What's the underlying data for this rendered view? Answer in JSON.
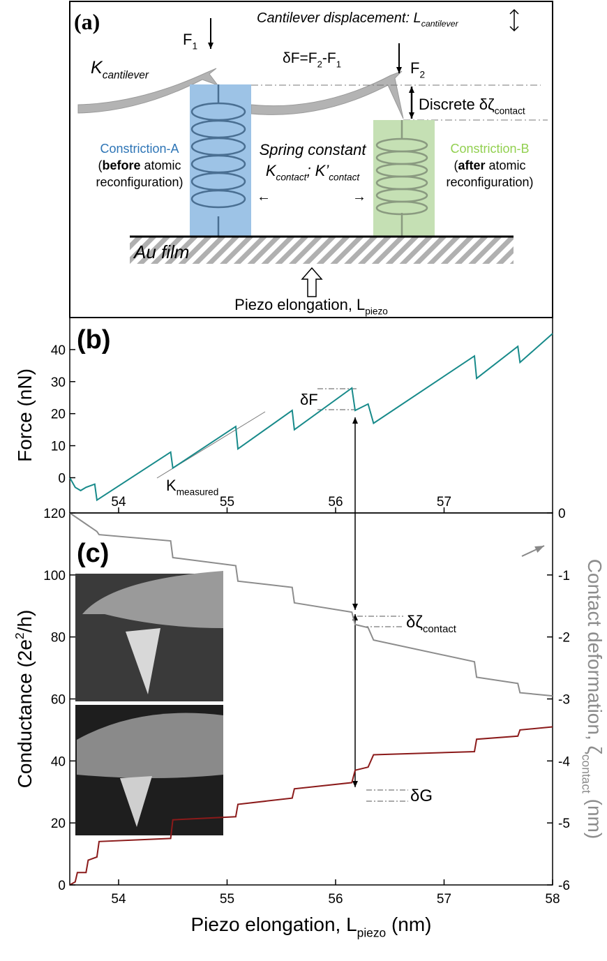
{
  "panel_a": {
    "label": "(a)",
    "displacement": [
      "Cantilever displacement: L",
      "cantilever"
    ],
    "f1": [
      "F",
      "1"
    ],
    "k_cantilever": [
      "K",
      "cantilever"
    ],
    "delta_f": [
      "δF=F",
      "2",
      "-F",
      "1"
    ],
    "f2": [
      "F",
      "2"
    ],
    "discrete": [
      "Discrete δζ",
      "contact"
    ],
    "constriction_a": {
      "title": "Constriction-A",
      "line1": [
        "(",
        "before",
        " atomic"
      ],
      "line2": "reconfiguration)"
    },
    "spring": {
      "title": "Spring constant",
      "line2": [
        "K",
        "contact",
        "; K’",
        "contact"
      ]
    },
    "constriction_b": {
      "title": "Constriction-B",
      "line1": [
        "(",
        "after",
        " atomic"
      ],
      "line2": "reconfiguration)"
    },
    "substrate": "Au film",
    "piezo": [
      "Piezo elongation, L",
      "piezo"
    ]
  },
  "chart_data": [
    {
      "type": "line",
      "label": "(b)",
      "ylabel": "Force (nN)",
      "annotations": {
        "delta_f": "δF",
        "k_measured": [
          "K",
          "measured"
        ]
      },
      "xlim": [
        53.55,
        58
      ],
      "xticks": [
        54,
        55,
        56,
        57
      ],
      "ylim": [
        -11,
        50
      ],
      "yticks": [
        0,
        10,
        20,
        30,
        40
      ],
      "series": [
        {
          "color": "#178a8a",
          "x": [
            53.55,
            53.6,
            53.65,
            53.7,
            53.78,
            53.8,
            54.48,
            54.5,
            55.08,
            55.1,
            55.6,
            55.62,
            56.15,
            56.18,
            56.3,
            56.35,
            57.28,
            57.3,
            57.68,
            57.7,
            58
          ],
          "values": [
            0,
            -3,
            -4,
            -3,
            -2,
            -7,
            8,
            3,
            16,
            9,
            21,
            15,
            28,
            21,
            23,
            17,
            38,
            31,
            41,
            36,
            45
          ]
        }
      ]
    },
    {
      "type": "line",
      "label": "(c)",
      "xlabel": [
        "Piezo elongation, L",
        "piezo",
        " (nm)"
      ],
      "ylabel": [
        "Conductance (2e",
        "2",
        "/h)"
      ],
      "y2label": [
        "Contact deformation, ζ",
        "contact",
        " (nm)"
      ],
      "annotations": {
        "delta_zeta": [
          "δζ",
          "contact"
        ],
        "delta_g": "δG"
      },
      "xlim": [
        53.55,
        58
      ],
      "xticks": [
        54,
        55,
        56,
        57,
        58
      ],
      "ylim": [
        0,
        120
      ],
      "yticks": [
        0,
        20,
        40,
        60,
        80,
        100,
        120
      ],
      "y2lim": [
        -6,
        0
      ],
      "y2ticks": [
        -6,
        -5,
        -4,
        -3,
        -2,
        -1,
        0
      ],
      "series": [
        {
          "color": "#8b1a1a",
          "axis": "y",
          "x": [
            53.55,
            53.6,
            53.62,
            53.7,
            53.72,
            53.8,
            53.82,
            54.48,
            54.5,
            55.08,
            55.1,
            55.6,
            55.62,
            56.15,
            56.18,
            56.3,
            56.35,
            57.28,
            57.3,
            57.68,
            57.7,
            58
          ],
          "values": [
            0,
            1,
            4,
            4,
            8,
            9,
            14,
            15,
            21,
            22,
            26,
            28,
            31,
            33,
            37,
            38,
            42,
            43,
            47,
            48,
            50,
            51
          ]
        },
        {
          "color": "#8c8c8c",
          "axis": "y2",
          "x": [
            53.55,
            53.8,
            53.82,
            54.48,
            54.5,
            55.08,
            55.1,
            55.6,
            55.62,
            56.15,
            56.18,
            56.3,
            56.35,
            57.28,
            57.3,
            57.68,
            57.7,
            58
          ],
          "values": [
            0,
            -0.3,
            -0.35,
            -0.45,
            -0.72,
            -0.85,
            -1.1,
            -1.2,
            -1.45,
            -1.6,
            -1.8,
            -1.85,
            -2.05,
            -2.4,
            -2.65,
            -2.75,
            -2.9,
            -2.95
          ]
        }
      ]
    }
  ]
}
